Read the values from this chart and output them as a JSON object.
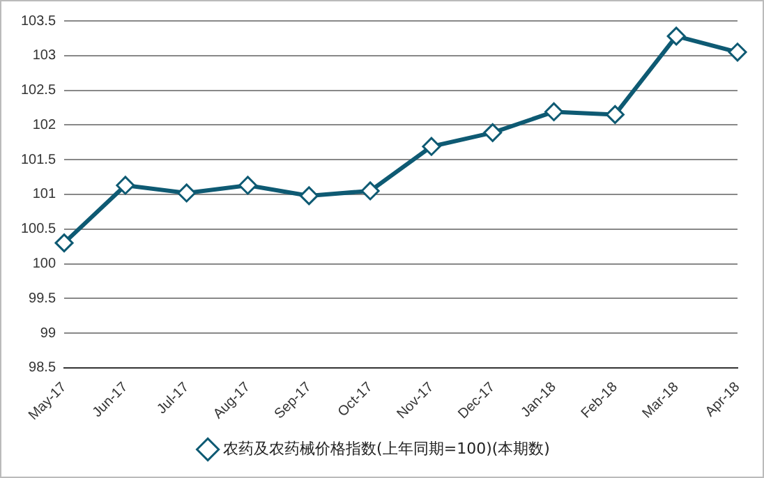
{
  "chart_data": {
    "type": "line",
    "categories": [
      "May-17",
      "Jun-17",
      "Jul-17",
      "Aug-17",
      "Sep-17",
      "Oct-17",
      "Nov-17",
      "Dec-17",
      "Jan-18",
      "Feb-18",
      "Mar-18",
      "Apr-18"
    ],
    "series": [
      {
        "name": "农药及农药械价格指数(上年同期=100)(本期数)",
        "color": "#0e5a73",
        "values": [
          100.3,
          101.13,
          101.02,
          101.13,
          100.98,
          101.05,
          101.69,
          101.89,
          102.19,
          102.15,
          103.28,
          103.05
        ]
      }
    ],
    "ylim": [
      98.5,
      103.5
    ],
    "yticks": [
      98.5,
      99,
      99.5,
      100,
      100.5,
      101,
      101.5,
      102,
      102.5,
      103,
      103.5
    ],
    "grid": "y",
    "legend": "bottom",
    "marker": "diamond",
    "line_style": "solid"
  }
}
